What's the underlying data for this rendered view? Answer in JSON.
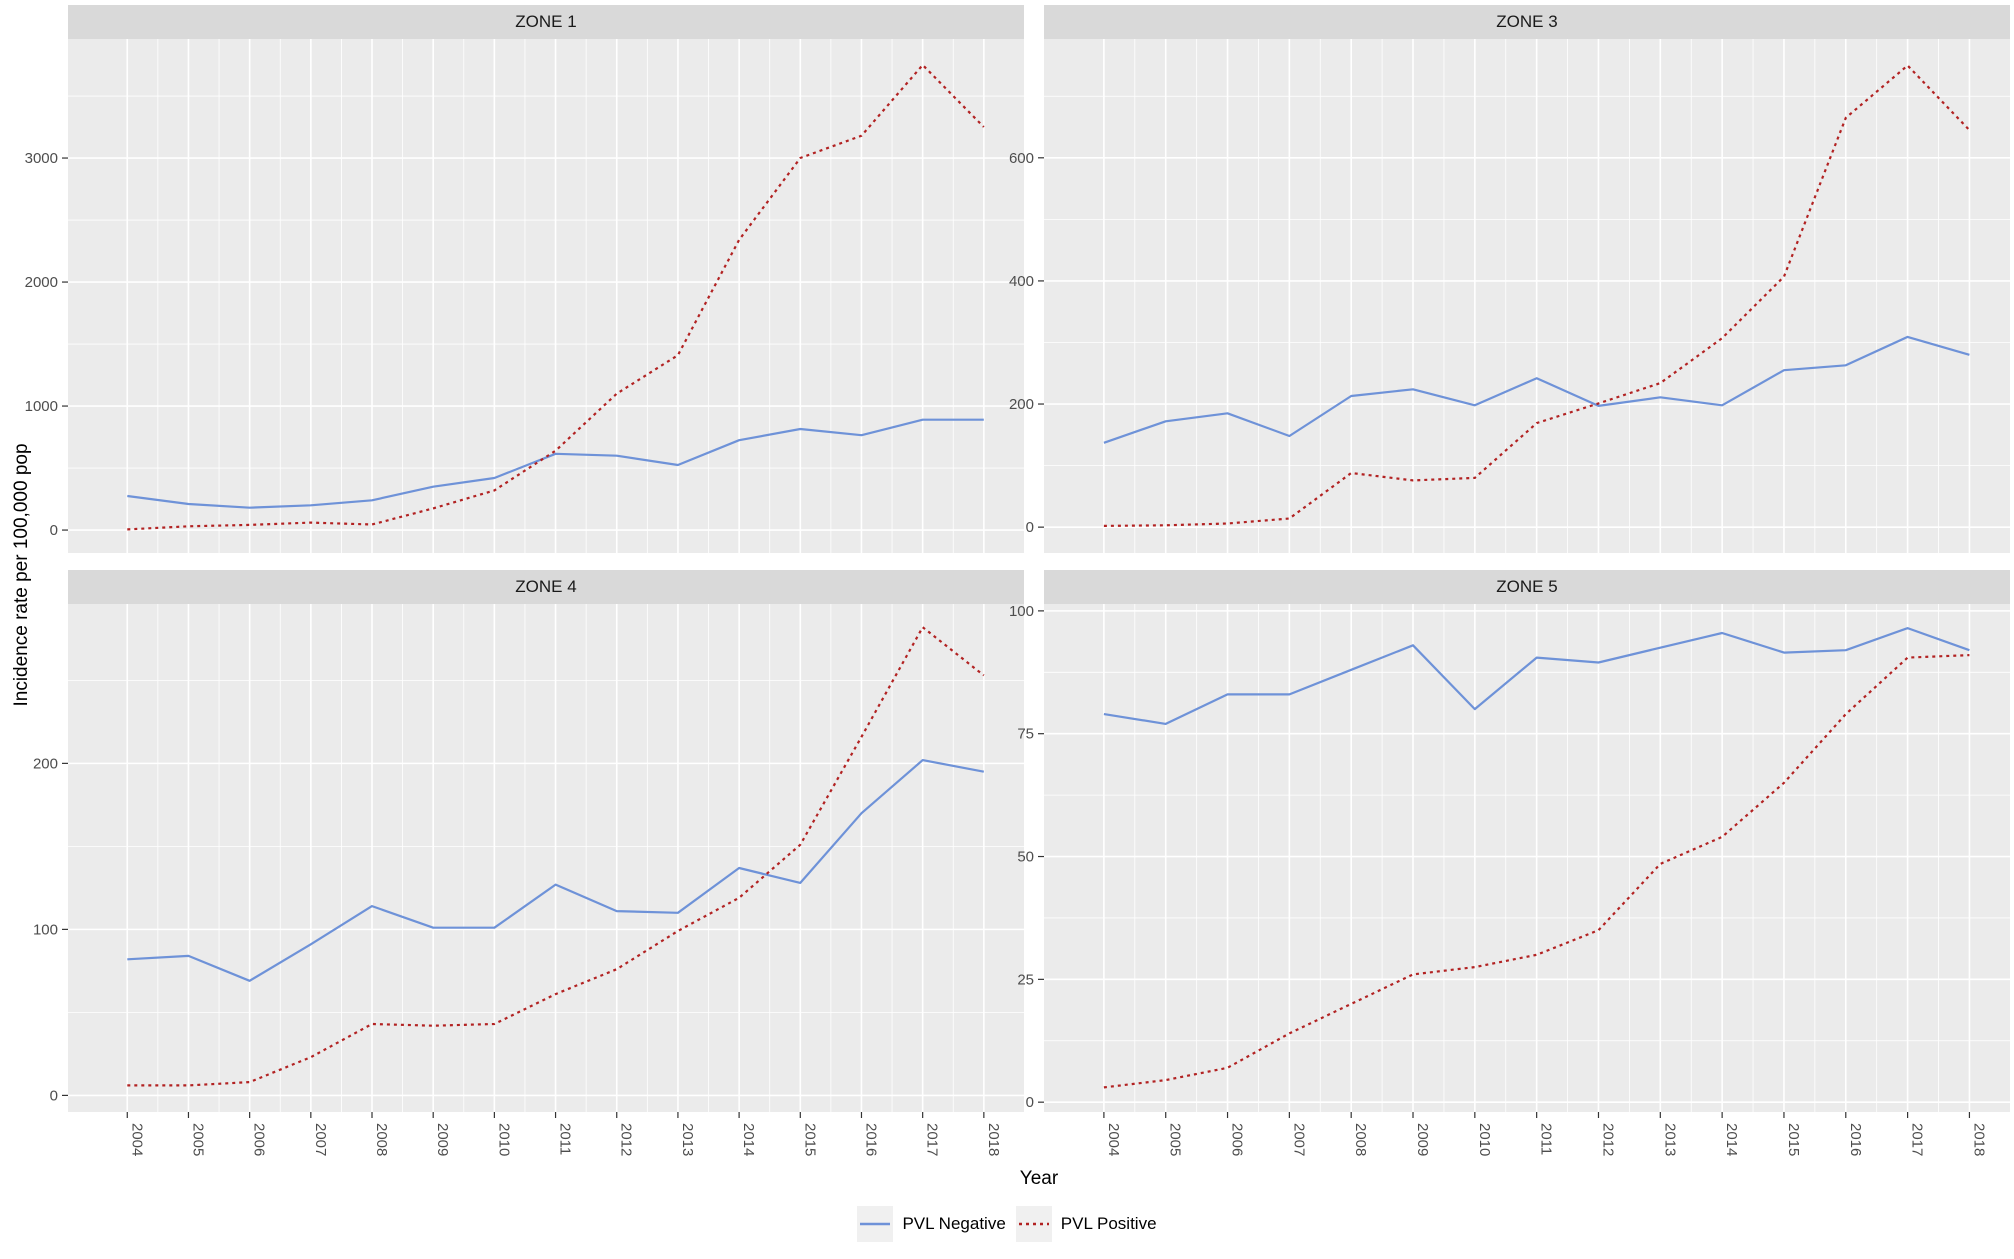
{
  "figure": {
    "ylabel": "Incidence rate per 100,000 pop",
    "xlabel": "Year",
    "legend_position": "bottom",
    "panel_background": "#ebebeb",
    "strip_background": "#d9d9d9",
    "grid_color": "#ffffff",
    "legend": [
      {
        "label": "PVL Negative",
        "color": "#6e92d8",
        "linetype": "solid"
      },
      {
        "label": "PVL Positive",
        "color": "#b22222",
        "linetype": "dotted"
      }
    ]
  },
  "chart_data": [
    {
      "type": "line",
      "title": "ZONE 1",
      "x": [
        2004,
        2005,
        2006,
        2007,
        2008,
        2009,
        2010,
        2011,
        2012,
        2013,
        2014,
        2015,
        2016,
        2017,
        2018
      ],
      "series": [
        {
          "name": "PVL Negative",
          "color": "#6e92d8",
          "linetype": "solid",
          "values": [
            275,
            210,
            180,
            200,
            240,
            350,
            420,
            615,
            600,
            525,
            725,
            815,
            765,
            890,
            890
          ]
        },
        {
          "name": "PVL Positive",
          "color": "#b22222",
          "linetype": "dotted",
          "values": [
            5,
            30,
            42,
            60,
            45,
            175,
            320,
            640,
            1100,
            1410,
            2340,
            3000,
            3180,
            3750,
            3250
          ]
        }
      ],
      "yticks": [
        0,
        1000,
        2000,
        3000
      ],
      "ylim": [
        -185,
        3960
      ],
      "grid": true
    },
    {
      "type": "line",
      "title": "ZONE 3",
      "x": [
        2004,
        2005,
        2006,
        2007,
        2008,
        2009,
        2010,
        2011,
        2012,
        2013,
        2014,
        2015,
        2016,
        2017,
        2018
      ],
      "series": [
        {
          "name": "PVL Negative",
          "color": "#6e92d8",
          "linetype": "solid",
          "values": [
            137,
            172,
            185,
            148,
            213,
            224,
            198,
            242,
            197,
            211,
            198,
            255,
            263,
            309,
            280
          ]
        },
        {
          "name": "PVL Positive",
          "color": "#b22222",
          "linetype": "dotted",
          "values": [
            2,
            3,
            6,
            14,
            88,
            76,
            80,
            169,
            201,
            234,
            307,
            407,
            665,
            750,
            645
          ]
        }
      ],
      "yticks": [
        0,
        200,
        400,
        600
      ],
      "ylim": [
        -42,
        793
      ],
      "grid": true
    },
    {
      "type": "line",
      "title": "ZONE 4",
      "x": [
        2004,
        2005,
        2006,
        2007,
        2008,
        2009,
        2010,
        2011,
        2012,
        2013,
        2014,
        2015,
        2016,
        2017,
        2018
      ],
      "series": [
        {
          "name": "PVL Negative",
          "color": "#6e92d8",
          "linetype": "solid",
          "values": [
            82,
            84,
            69,
            91,
            114,
            101,
            101,
            127,
            111,
            110,
            137,
            128,
            170,
            202,
            195
          ]
        },
        {
          "name": "PVL Positive",
          "color": "#b22222",
          "linetype": "dotted",
          "values": [
            6,
            6,
            8,
            23,
            43,
            42,
            43,
            61,
            76,
            99,
            119,
            151,
            216,
            282,
            253
          ]
        }
      ],
      "yticks": [
        0,
        100,
        200
      ],
      "ylim": [
        -10,
        296
      ],
      "grid": true
    },
    {
      "type": "line",
      "title": "ZONE 5",
      "x": [
        2004,
        2005,
        2006,
        2007,
        2008,
        2009,
        2010,
        2011,
        2012,
        2013,
        2014,
        2015,
        2016,
        2017,
        2018
      ],
      "series": [
        {
          "name": "PVL Negative",
          "color": "#6e92d8",
          "linetype": "solid",
          "values": [
            79,
            77,
            83,
            83,
            88,
            93,
            80,
            90.5,
            89.5,
            92.5,
            95.5,
            91.5,
            92,
            96.5,
            92
          ]
        },
        {
          "name": "PVL Positive",
          "color": "#b22222",
          "linetype": "dotted",
          "values": [
            3,
            4.5,
            7,
            14,
            20,
            26,
            27.5,
            30,
            35,
            48.5,
            54,
            65,
            79,
            90.5,
            91
          ]
        }
      ],
      "yticks": [
        0,
        25,
        50,
        75,
        100
      ],
      "ylim": [
        -2,
        101.4
      ],
      "grid": true
    }
  ]
}
